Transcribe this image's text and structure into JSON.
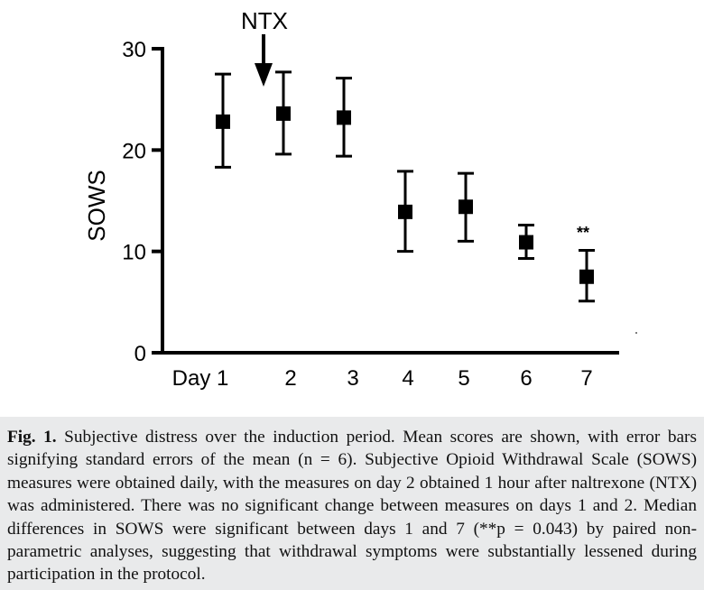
{
  "chart_data": {
    "type": "scatter",
    "ylabel": "SOWS",
    "ylim": [
      0,
      30
    ],
    "yticks": [
      "0",
      "10",
      "20",
      "30"
    ],
    "categories": [
      "Day 1",
      "2",
      "3",
      "4",
      "5",
      "6",
      "7"
    ],
    "x": [
      1,
      2,
      3,
      4,
      5,
      6,
      7
    ],
    "series": [
      {
        "values": [
          22.8,
          23.6,
          23.2,
          13.9,
          14.4,
          10.9,
          7.5
        ],
        "error_plus": [
          4.7,
          4.1,
          3.9,
          4.0,
          3.3,
          1.7,
          2.6
        ],
        "error_minus": [
          4.5,
          4.0,
          3.8,
          3.9,
          3.4,
          1.6,
          2.4
        ]
      }
    ],
    "marker": "square",
    "color": "#000000",
    "annotations": [
      {
        "text": "NTX",
        "x": 2,
        "type": "arrow-down"
      },
      {
        "text": "**",
        "x": 7
      }
    ],
    "grid": false,
    "legend": "none"
  },
  "caption": {
    "label": "Fig. 1.",
    "text": "Subjective distress over the induction period. Mean scores are shown, with error bars signifying standard errors of the mean (n = 6). Subjective Opioid Withdrawal Scale (SOWS) measures were obtained daily, with the measures on day 2 obtained 1 hour after naltrexone (NTX) was administered. There was no significant change between measures on days 1 and 2. Median differences in SOWS were significant between days 1 and 7 (**p = 0.043) by paired non-parametric analyses, suggesting that withdrawal symptoms were substantially lessened during participation in the protocol."
  }
}
